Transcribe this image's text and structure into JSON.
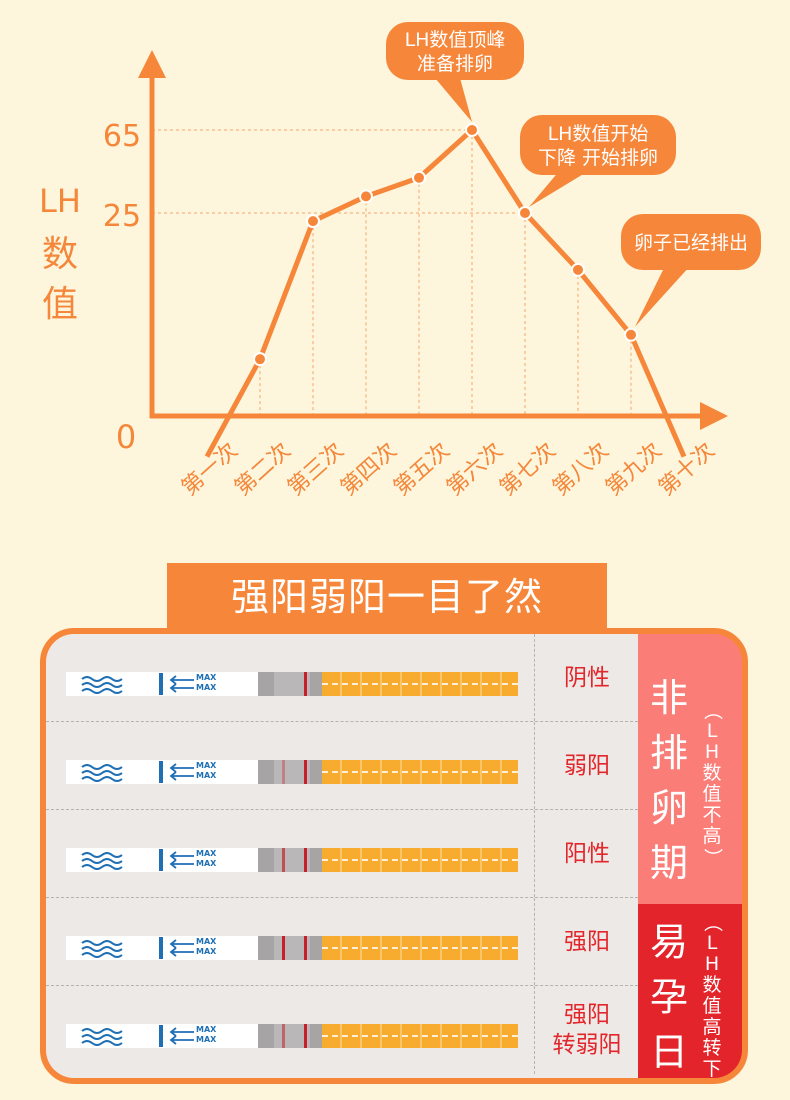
{
  "chart_data": {
    "type": "line",
    "ylabel": "LH数值",
    "y_ticks": [
      "0",
      "25",
      "65"
    ],
    "x": [
      "第一次",
      "第二次",
      "第三次",
      "第四次",
      "第五次",
      "第六次",
      "第七次",
      "第八次",
      "第九次",
      "第十次"
    ],
    "values": [
      -5,
      7,
      24,
      33,
      42,
      65,
      25,
      18,
      10,
      -5
    ],
    "annotations": [
      {
        "lines": [
          "LH数值顶峰",
          "准备排卵"
        ],
        "point": "第六次"
      },
      {
        "lines": [
          "LH数值开始",
          "下降 开始排卵"
        ],
        "point": "第七次"
      },
      {
        "lines": [
          "卵子已经排出"
        ],
        "point": "第九次"
      }
    ],
    "colors": {
      "line": "#f6873a",
      "accent": "#f6873a"
    }
  },
  "section": {
    "title": "强阳弱阳一目了然",
    "strip_text": "MAX",
    "rows": [
      {
        "label_lines": [
          "阴性"
        ],
        "test_line": false,
        "control_line": true
      },
      {
        "label_lines": [
          "弱阳"
        ],
        "test_line": true,
        "control_line": true
      },
      {
        "label_lines": [
          "阳性"
        ],
        "test_line": true,
        "control_line": true
      },
      {
        "label_lines": [
          "强阳"
        ],
        "test_line": true,
        "control_line": true
      },
      {
        "label_lines": [
          "强阳",
          "转弱阳"
        ],
        "test_line": true,
        "control_line": true
      }
    ],
    "side_top": {
      "big": [
        "非",
        "排",
        "卵",
        "期"
      ],
      "note": "（LH数值不高）"
    },
    "side_bottom": {
      "big": [
        "易",
        "孕",
        "日"
      ],
      "note": "（LH数值高转下）"
    }
  }
}
